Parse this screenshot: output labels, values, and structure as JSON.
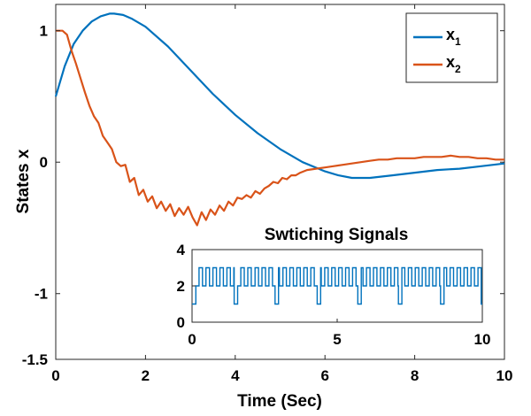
{
  "chart_data": [
    {
      "type": "line",
      "title": "",
      "xlabel": "Time (Sec)",
      "ylabel": "States x",
      "xlim": [
        0,
        10
      ],
      "ylim": [
        -1.5,
        1.2
      ],
      "xticks": [
        0,
        2,
        4,
        6,
        8,
        10
      ],
      "xtick_labels": [
        "0",
        "2",
        "4",
        "6",
        "8",
        "10"
      ],
      "yticks": [
        -1.5,
        -1,
        0,
        1
      ],
      "ytick_labels": [
        "-1.5",
        "-1",
        "0",
        "1"
      ],
      "grid": false,
      "legend_position": "top-right",
      "legend": [
        {
          "base": "x",
          "sub": "1"
        },
        {
          "base": "x",
          "sub": "2"
        }
      ],
      "series": [
        {
          "name": "x1",
          "color": "#0072BD",
          "points": [
            [
              0,
              0.5
            ],
            [
              0.2,
              0.73
            ],
            [
              0.4,
              0.9
            ],
            [
              0.6,
              1.0
            ],
            [
              0.8,
              1.07
            ],
            [
              1.0,
              1.11
            ],
            [
              1.2,
              1.13
            ],
            [
              1.3,
              1.13
            ],
            [
              1.5,
              1.12
            ],
            [
              1.7,
              1.09
            ],
            [
              2.0,
              1.03
            ],
            [
              2.5,
              0.88
            ],
            [
              3.0,
              0.7
            ],
            [
              3.5,
              0.52
            ],
            [
              4.0,
              0.36
            ],
            [
              4.5,
              0.22
            ],
            [
              5.0,
              0.1
            ],
            [
              5.5,
              0.0
            ],
            [
              6.0,
              -0.07
            ],
            [
              6.3,
              -0.1
            ],
            [
              6.6,
              -0.12
            ],
            [
              7.0,
              -0.12
            ],
            [
              7.5,
              -0.1
            ],
            [
              8.0,
              -0.08
            ],
            [
              8.5,
              -0.06
            ],
            [
              9.0,
              -0.05
            ],
            [
              9.5,
              -0.03
            ],
            [
              10.0,
              -0.01
            ]
          ]
        },
        {
          "name": "x2",
          "color": "#D95319",
          "points": [
            [
              0,
              1.0
            ],
            [
              0.15,
              1.0
            ],
            [
              0.25,
              0.97
            ],
            [
              0.35,
              0.85
            ],
            [
              0.45,
              0.75
            ],
            [
              0.55,
              0.64
            ],
            [
              0.65,
              0.53
            ],
            [
              0.75,
              0.43
            ],
            [
              0.85,
              0.35
            ],
            [
              0.95,
              0.3
            ],
            [
              1.05,
              0.2
            ],
            [
              1.15,
              0.15
            ],
            [
              1.25,
              0.1
            ],
            [
              1.35,
              0.0
            ],
            [
              1.45,
              -0.03
            ],
            [
              1.55,
              -0.02
            ],
            [
              1.65,
              -0.15
            ],
            [
              1.75,
              -0.12
            ],
            [
              1.85,
              -0.25
            ],
            [
              1.95,
              -0.21
            ],
            [
              2.05,
              -0.3
            ],
            [
              2.15,
              -0.26
            ],
            [
              2.25,
              -0.35
            ],
            [
              2.35,
              -0.3
            ],
            [
              2.45,
              -0.37
            ],
            [
              2.55,
              -0.32
            ],
            [
              2.65,
              -0.41
            ],
            [
              2.75,
              -0.35
            ],
            [
              2.85,
              -0.4
            ],
            [
              2.95,
              -0.34
            ],
            [
              3.05,
              -0.42
            ],
            [
              3.15,
              -0.48
            ],
            [
              3.25,
              -0.38
            ],
            [
              3.35,
              -0.44
            ],
            [
              3.45,
              -0.36
            ],
            [
              3.55,
              -0.4
            ],
            [
              3.65,
              -0.33
            ],
            [
              3.75,
              -0.37
            ],
            [
              3.85,
              -0.3
            ],
            [
              3.95,
              -0.33
            ],
            [
              4.05,
              -0.27
            ],
            [
              4.15,
              -0.28
            ],
            [
              4.25,
              -0.25
            ],
            [
              4.35,
              -0.27
            ],
            [
              4.45,
              -0.22
            ],
            [
              4.55,
              -0.24
            ],
            [
              4.65,
              -0.2
            ],
            [
              4.75,
              -0.18
            ],
            [
              4.85,
              -0.15
            ],
            [
              4.95,
              -0.16
            ],
            [
              5.05,
              -0.12
            ],
            [
              5.15,
              -0.13
            ],
            [
              5.25,
              -0.1
            ],
            [
              5.35,
              -0.1
            ],
            [
              5.45,
              -0.08
            ],
            [
              5.6,
              -0.06
            ],
            [
              5.8,
              -0.05
            ],
            [
              6.0,
              -0.04
            ],
            [
              6.2,
              -0.03
            ],
            [
              6.4,
              -0.02
            ],
            [
              6.6,
              -0.01
            ],
            [
              6.8,
              0.0
            ],
            [
              7.0,
              0.01
            ],
            [
              7.2,
              0.02
            ],
            [
              7.4,
              0.02
            ],
            [
              7.6,
              0.03
            ],
            [
              7.8,
              0.03
            ],
            [
              8.0,
              0.03
            ],
            [
              8.2,
              0.04
            ],
            [
              8.4,
              0.04
            ],
            [
              8.6,
              0.04
            ],
            [
              8.8,
              0.05
            ],
            [
              9.0,
              0.04
            ],
            [
              9.2,
              0.04
            ],
            [
              9.4,
              0.03
            ],
            [
              9.6,
              0.03
            ],
            [
              9.8,
              0.02
            ],
            [
              10.0,
              0.02
            ]
          ]
        }
      ]
    },
    {
      "type": "line",
      "title": "Swtiching Signals",
      "xlabel": "",
      "ylabel": "",
      "xlim": [
        0,
        10
      ],
      "ylim": [
        0,
        4
      ],
      "xticks": [
        0,
        5,
        10
      ],
      "xtick_labels": [
        "0",
        "5",
        "10"
      ],
      "yticks": [
        0,
        2,
        4
      ],
      "ytick_labels": [
        "0",
        "2",
        "4"
      ],
      "grid": false,
      "series": [
        {
          "color": "#0072BD",
          "start": 0,
          "end": 10,
          "base": 2,
          "high": 3,
          "low": 1,
          "period": 0.24,
          "duty": 0.5,
          "dips": [
            0,
            1.45,
            2.85,
            4.3,
            5.7,
            7.1,
            8.55,
            9.95
          ],
          "dip_width": 0.12
        }
      ]
    }
  ]
}
